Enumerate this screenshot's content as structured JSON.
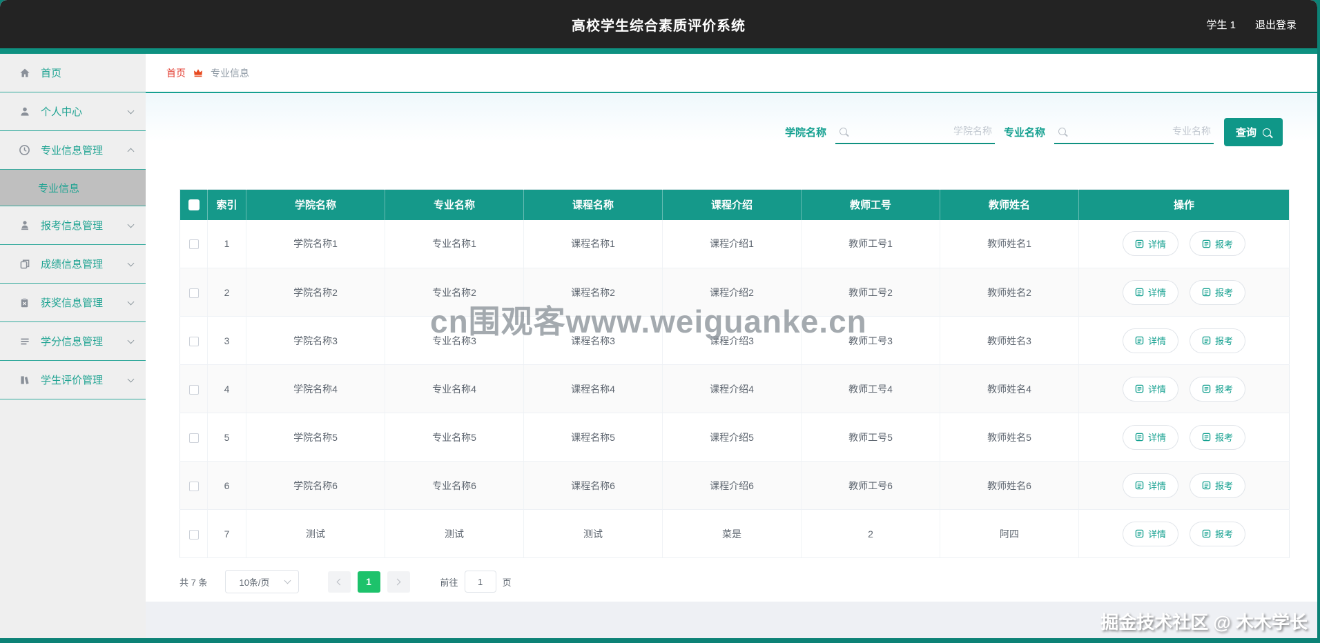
{
  "header": {
    "title": "高校学生综合素质评价系统",
    "user": "学生 1",
    "logout": "退出登录"
  },
  "sidebar": {
    "items": [
      {
        "name": "sidebar-item-home",
        "icon": "home-icon",
        "label": "首页",
        "expandable": false
      },
      {
        "name": "sidebar-item-personal-center",
        "icon": "user-icon",
        "label": "个人中心",
        "expandable": true
      },
      {
        "name": "sidebar-item-major-info-management",
        "icon": "clock-icon",
        "label": "专业信息管理",
        "expandable": true,
        "expanded": true,
        "children": [
          {
            "name": "sidebar-item-major-info",
            "label": "专业信息",
            "active": true
          }
        ]
      },
      {
        "name": "sidebar-item-application-info-management",
        "icon": "user-badge-icon",
        "label": "报考信息管理",
        "expandable": true
      },
      {
        "name": "sidebar-item-grade-info-management",
        "icon": "copy-icon",
        "label": "成绩信息管理",
        "expandable": true
      },
      {
        "name": "sidebar-item-award-info-management",
        "icon": "clipboard-icon",
        "label": "获奖信息管理",
        "expandable": true
      },
      {
        "name": "sidebar-item-credit-info-management",
        "icon": "list-icon",
        "label": "学分信息管理",
        "expandable": true
      },
      {
        "name": "sidebar-item-student-evaluation-management",
        "icon": "book-chart-icon",
        "label": "学生评价管理",
        "expandable": true
      }
    ]
  },
  "breadcrumb": {
    "home": "首页",
    "current": "专业信息"
  },
  "search": {
    "college_label": "学院名称",
    "college_placeholder": "学院名称",
    "major_label": "专业名称",
    "major_placeholder": "专业名称",
    "query_button": "查询"
  },
  "table": {
    "headers": [
      "索引",
      "学院名称",
      "专业名称",
      "课程名称",
      "课程介绍",
      "教师工号",
      "教师姓名",
      "操作"
    ],
    "action_buttons": [
      "详情",
      "报考"
    ],
    "rows": [
      [
        "1",
        "学院名称1",
        "专业名称1",
        "课程名称1",
        "课程介绍1",
        "教师工号1",
        "教师姓名1"
      ],
      [
        "2",
        "学院名称2",
        "专业名称2",
        "课程名称2",
        "课程介绍2",
        "教师工号2",
        "教师姓名2"
      ],
      [
        "3",
        "学院名称3",
        "专业名称3",
        "课程名称3",
        "课程介绍3",
        "教师工号3",
        "教师姓名3"
      ],
      [
        "4",
        "学院名称4",
        "专业名称4",
        "课程名称4",
        "课程介绍4",
        "教师工号4",
        "教师姓名4"
      ],
      [
        "5",
        "学院名称5",
        "专业名称5",
        "课程名称5",
        "课程介绍5",
        "教师工号5",
        "教师姓名5"
      ],
      [
        "6",
        "学院名称6",
        "专业名称6",
        "课程名称6",
        "课程介绍6",
        "教师工号6",
        "教师姓名6"
      ],
      [
        "7",
        "测试",
        "测试",
        "测试",
        "菜是",
        "2",
        "阿四"
      ]
    ]
  },
  "pagination": {
    "total": "共 7 条",
    "page_size": "10条/页",
    "current_page": "1",
    "goto_prefix": "前往",
    "goto_value": "1",
    "goto_suffix": "页"
  },
  "watermarks": {
    "center": "cn围观客www.weiguanke.cn",
    "corner": "掘金技术社区 @ 木木学长"
  },
  "colors": {
    "teal_accent": "#0f9181",
    "table_header": "#15998a",
    "header_dark": "#232323",
    "breadcrumb_red": "#e33f33",
    "active_page_green": "#1dc26b",
    "sidebar_text": "#1fa392"
  }
}
